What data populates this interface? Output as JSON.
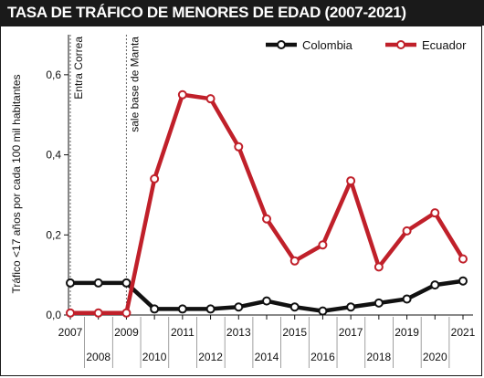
{
  "chart_data": {
    "type": "line",
    "title": "TASA DE TRÁFICO DE MENORES DE EDAD (2007-2021)",
    "ylabel": "Tráfico <17 años por cada 100 mil habitantes",
    "xlabel": "",
    "x": [
      "2007",
      "2008",
      "2009",
      "2010",
      "2011",
      "2012",
      "2013",
      "2014",
      "2015",
      "2016",
      "2017",
      "2018",
      "2019",
      "2020",
      "2021"
    ],
    "ylim": [
      0,
      0.7
    ],
    "yticks": [
      "0,0",
      "0,2",
      "0,4",
      "0,6"
    ],
    "ytick_values": [
      0,
      0.2,
      0.4,
      0.6
    ],
    "series": [
      {
        "name": "Colombia",
        "color": "#111111",
        "values": [
          0.08,
          0.08,
          0.08,
          0.015,
          0.015,
          0.015,
          0.02,
          0.035,
          0.02,
          0.01,
          0.02,
          0.03,
          0.04,
          0.075,
          0.085
        ]
      },
      {
        "name": "Ecuador",
        "color": "#c0202a",
        "values": [
          0.005,
          0.005,
          0.005,
          0.34,
          0.55,
          0.54,
          0.42,
          0.24,
          0.135,
          0.175,
          0.335,
          0.12,
          0.21,
          0.255,
          0.14
        ]
      }
    ],
    "annotations": [
      {
        "label": "Entra Correa",
        "x": "2007"
      },
      {
        "label": "sale base de Manta",
        "x": "2009"
      }
    ],
    "legend_position": "top-right",
    "grid": false
  }
}
